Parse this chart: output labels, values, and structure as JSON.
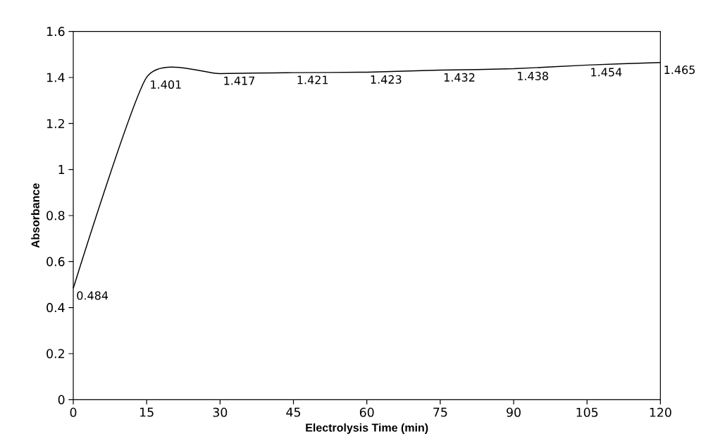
{
  "chart_data": {
    "type": "line",
    "xlabel": "Electrolysis Time (min)",
    "ylabel": "Absorbance",
    "x": [
      0,
      15,
      30,
      45,
      60,
      75,
      90,
      105,
      120
    ],
    "values": [
      0.484,
      1.401,
      1.417,
      1.421,
      1.423,
      1.432,
      1.438,
      1.454,
      1.465
    ],
    "color": "#000000",
    "marker": "none",
    "line_style": "solid",
    "data_labels": true,
    "xlim": [
      0,
      120
    ],
    "xticks": [
      0,
      15,
      30,
      45,
      60,
      75,
      90,
      105,
      120
    ],
    "ylim": [
      0,
      1.6
    ],
    "yticks": [
      0,
      0.2,
      0.4,
      0.6,
      0.8,
      1,
      1.2,
      1.4,
      1.6
    ]
  }
}
